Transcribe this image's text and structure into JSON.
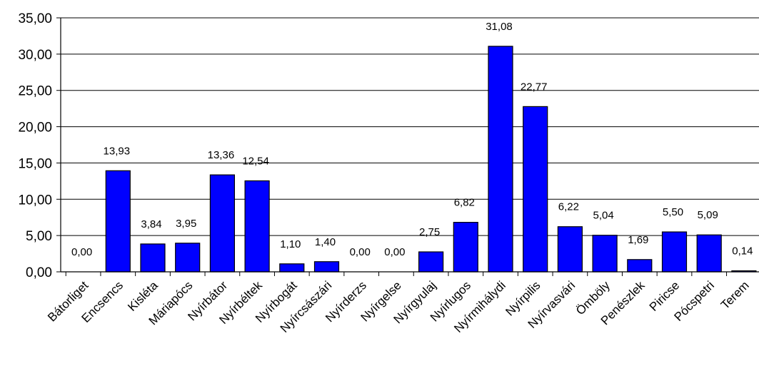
{
  "chart_data": {
    "type": "bar",
    "categories": [
      "Bátorliget",
      "Encsencs",
      "Kisléta",
      "Máriapócs",
      "Nyírbátor",
      "Nyírbéltek",
      "Nyírbogát",
      "Nyírcsászári",
      "Nyírderzs",
      "Nyírgelse",
      "Nyírgyulaj",
      "Nyírlugos",
      "Nyírmihálydi",
      "Nyírpilis",
      "Nyírvasvári",
      "Ömböly",
      "Penészlek",
      "Piricse",
      "Pócspetri",
      "Terem"
    ],
    "values": [
      0.0,
      13.93,
      3.84,
      3.95,
      13.36,
      12.54,
      1.1,
      1.4,
      0.0,
      0.0,
      2.75,
      6.82,
      31.08,
      22.77,
      6.22,
      5.04,
      1.69,
      5.5,
      5.09,
      0.14
    ],
    "data_labels": [
      "0,00",
      "13,93",
      "3,84",
      "3,95",
      "13,36",
      "12,54",
      "1,10",
      "1,40",
      "0,00",
      "0,00",
      "2,75",
      "6,82",
      "31,08",
      "22,77",
      "6,22",
      "5,04",
      "1,69",
      "5,50",
      "5,09",
      "0,14"
    ],
    "yticks": [
      "0,00",
      "5,00",
      "10,00",
      "15,00",
      "20,00",
      "25,00",
      "30,00",
      "35,00"
    ],
    "ylim": [
      0,
      35
    ],
    "ytick_step": 5,
    "title": "",
    "xlabel": "",
    "ylabel": "",
    "grid": "horizontal",
    "legend": "none",
    "colors": {
      "bar": "#0000ff",
      "bar_stroke": "#000000",
      "grid": "#000000",
      "axis": "#000000"
    }
  }
}
